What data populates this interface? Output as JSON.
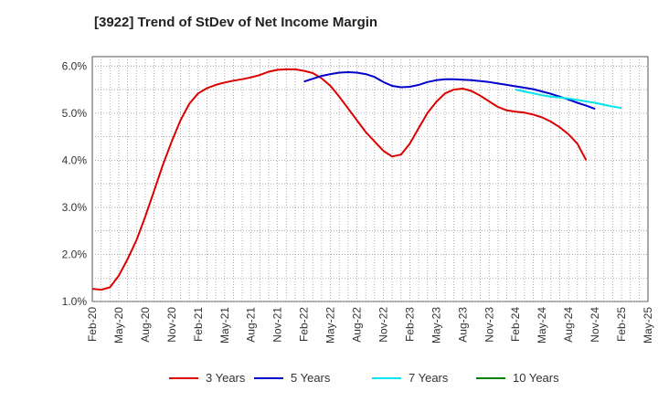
{
  "chart_data": {
    "type": "line",
    "title": "[3922]  Trend of StDev of Net Income Margin",
    "xlabel": "",
    "ylabel": "",
    "x_tick_labels": [
      "Feb-20",
      "May-20",
      "Aug-20",
      "Nov-20",
      "Feb-21",
      "May-21",
      "Aug-21",
      "Nov-21",
      "Feb-22",
      "May-22",
      "Aug-22",
      "Nov-22",
      "Feb-23",
      "May-23",
      "Aug-23",
      "Nov-23",
      "Feb-24",
      "May-24",
      "Aug-24",
      "Nov-24",
      "Feb-25",
      "May-25"
    ],
    "y_tick_labels": [
      "1.0%",
      "2.0%",
      "3.0%",
      "4.0%",
      "5.0%",
      "6.0%"
    ],
    "ylim": [
      1.0,
      6.2
    ],
    "grid": true,
    "legend_position": "bottom",
    "series": [
      {
        "name": "3 Years",
        "color": "#dd0000",
        "start_index": 0,
        "values": [
          1.27,
          1.25,
          1.3,
          1.55,
          1.9,
          2.3,
          2.8,
          3.35,
          3.9,
          4.4,
          4.85,
          5.2,
          5.42,
          5.53,
          5.6,
          5.65,
          5.69,
          5.72,
          5.76,
          5.81,
          5.88,
          5.92,
          5.93,
          5.93,
          5.9,
          5.85,
          5.74,
          5.58,
          5.35,
          5.1,
          4.85,
          4.6,
          4.4,
          4.2,
          4.08,
          4.12,
          4.35,
          4.68,
          5.0,
          5.24,
          5.42,
          5.5,
          5.52,
          5.47,
          5.37,
          5.25,
          5.13,
          5.06,
          5.03,
          5.01,
          4.97,
          4.91,
          4.82,
          4.7,
          4.55,
          4.35,
          4.0
        ]
      },
      {
        "name": "5 Years",
        "color": "#0000cc",
        "start_index": 24,
        "values": [
          5.67,
          5.73,
          5.79,
          5.83,
          5.86,
          5.87,
          5.86,
          5.83,
          5.77,
          5.66,
          5.58,
          5.55,
          5.56,
          5.6,
          5.66,
          5.7,
          5.72,
          5.72,
          5.71,
          5.7,
          5.68,
          5.66,
          5.63,
          5.6,
          5.57,
          5.54,
          5.51,
          5.46,
          5.41,
          5.35,
          5.29,
          5.22,
          5.16,
          5.09
        ]
      },
      {
        "name": "7 Years",
        "color": "#00e5ee",
        "start_index": 48,
        "values": [
          5.5,
          5.46,
          5.42,
          5.38,
          5.35,
          5.33,
          5.31,
          5.28,
          5.25,
          5.22,
          5.18,
          5.14,
          5.11
        ]
      },
      {
        "name": "10 Years",
        "color": "#008000",
        "start_index": 0,
        "values": []
      }
    ]
  }
}
